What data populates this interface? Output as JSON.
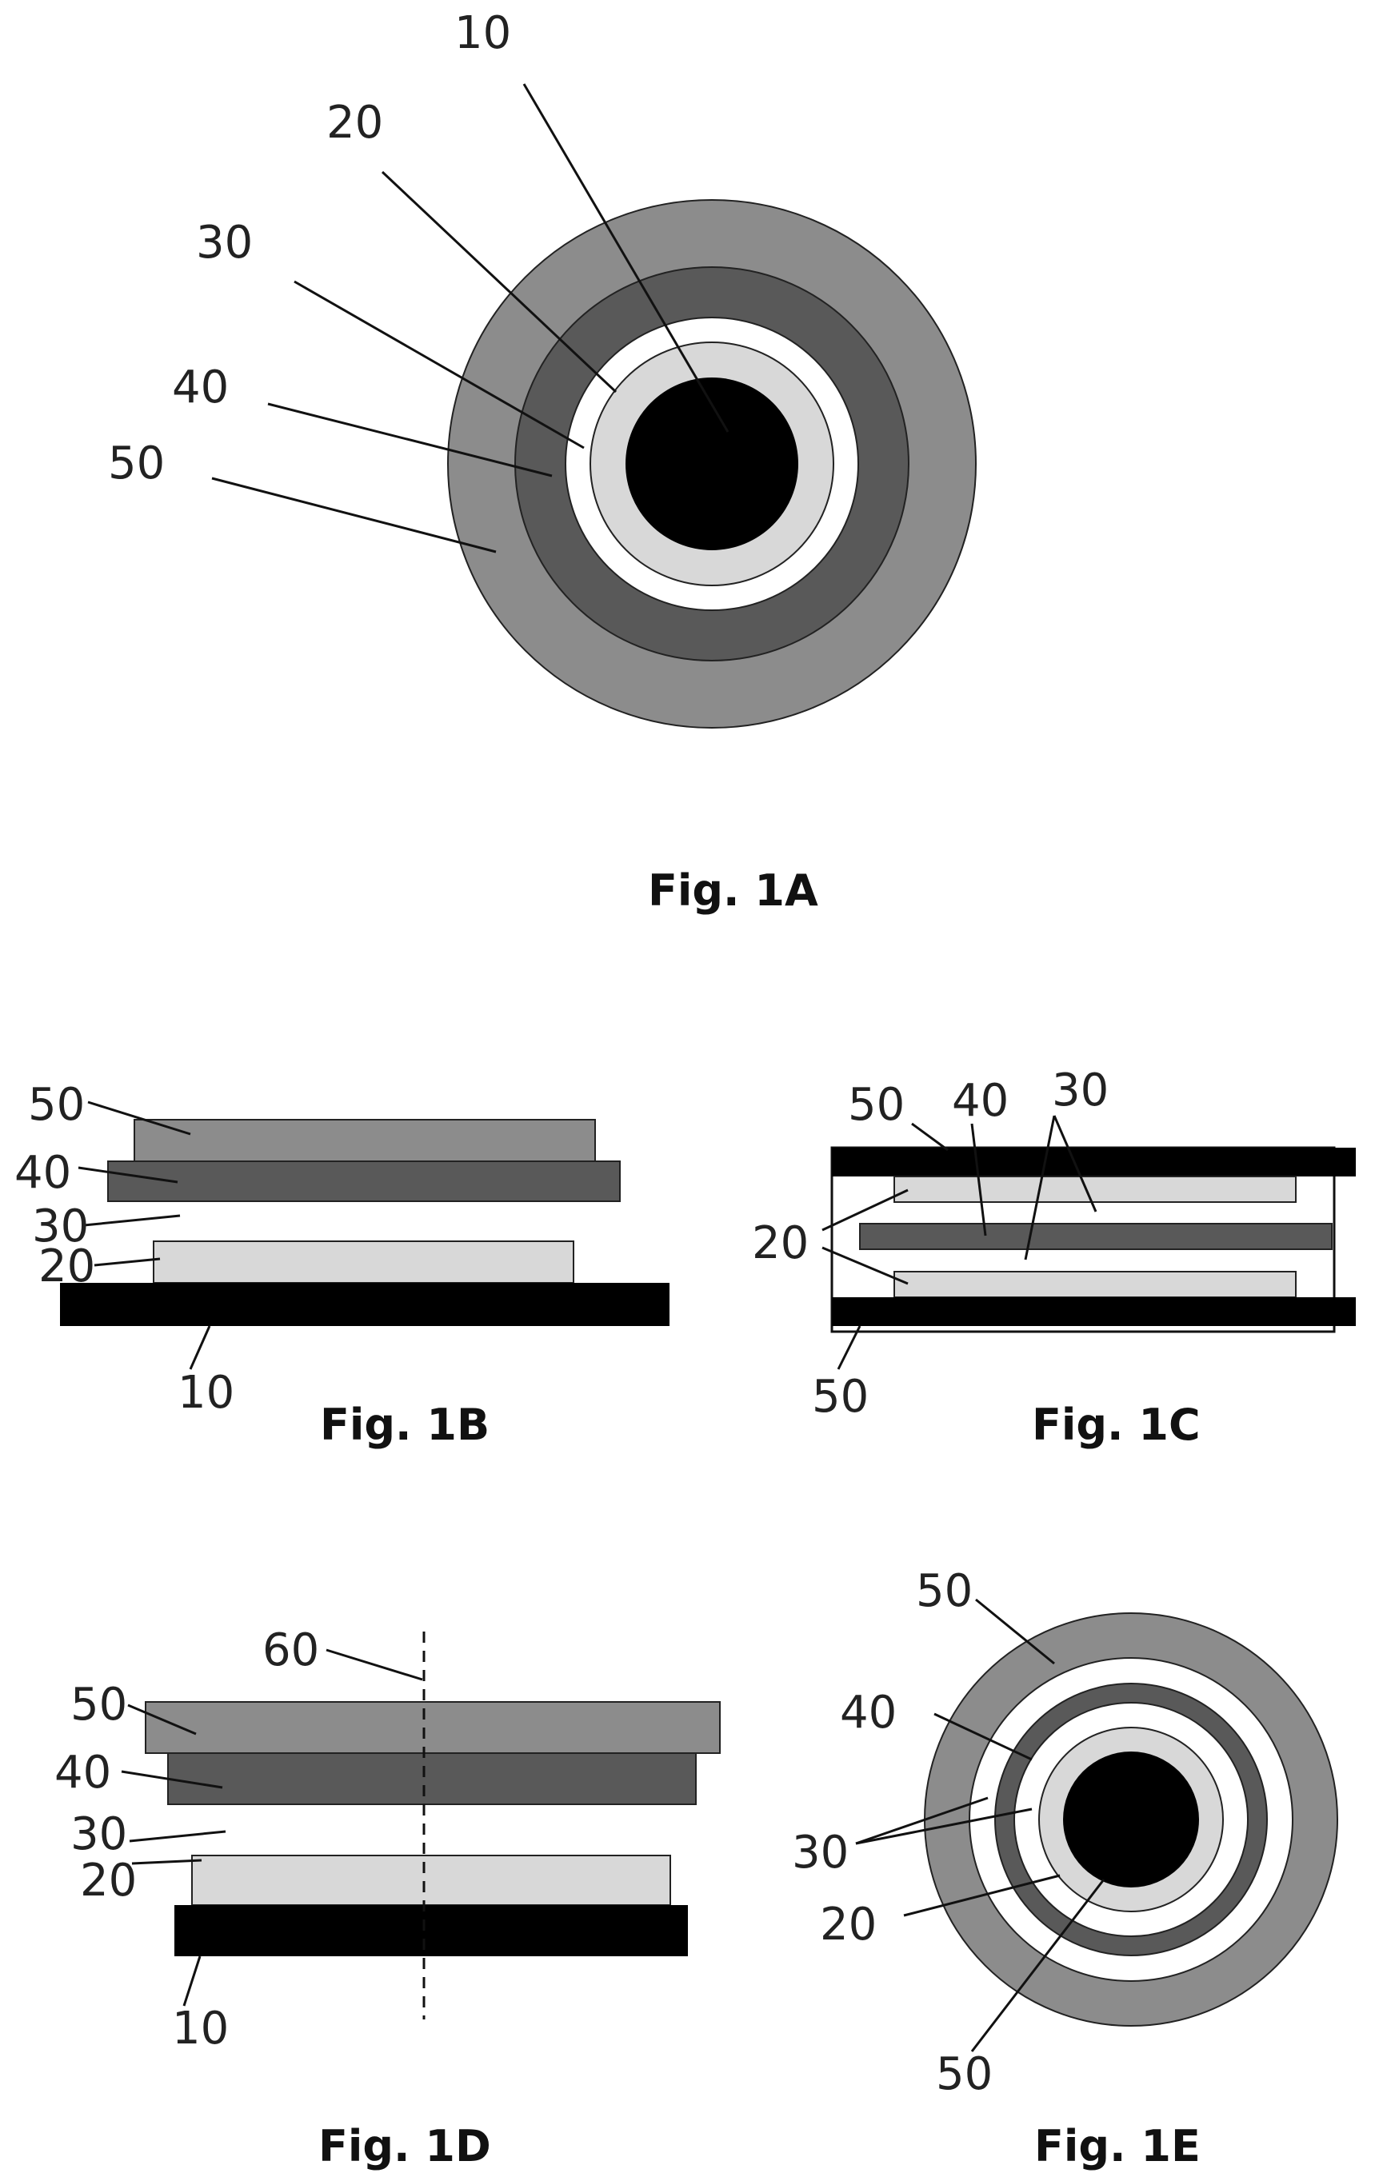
{
  "figures": {
    "fig1a": {
      "caption": "Fig. 1A",
      "labels": [
        "10",
        "20",
        "30",
        "40",
        "50"
      ]
    },
    "fig1b": {
      "caption": "Fig. 1B",
      "labels": [
        "50",
        "40",
        "30",
        "20",
        "10"
      ]
    },
    "fig1c": {
      "caption": "Fig. 1C",
      "labels": [
        "50",
        "40",
        "30",
        "20",
        "50"
      ]
    },
    "fig1d": {
      "caption": "Fig. 1D",
      "labels": [
        "60",
        "50",
        "40",
        "30",
        "20",
        "10"
      ]
    },
    "fig1e": {
      "caption": "Fig. 1E",
      "labels": [
        "50",
        "40",
        "30",
        "20",
        "50"
      ]
    }
  },
  "layer_colors": {
    "10": "#000000",
    "20": "#d8d8d8",
    "30": "#ffffff",
    "40": "#595959",
    "50": "#8c8c8c"
  }
}
